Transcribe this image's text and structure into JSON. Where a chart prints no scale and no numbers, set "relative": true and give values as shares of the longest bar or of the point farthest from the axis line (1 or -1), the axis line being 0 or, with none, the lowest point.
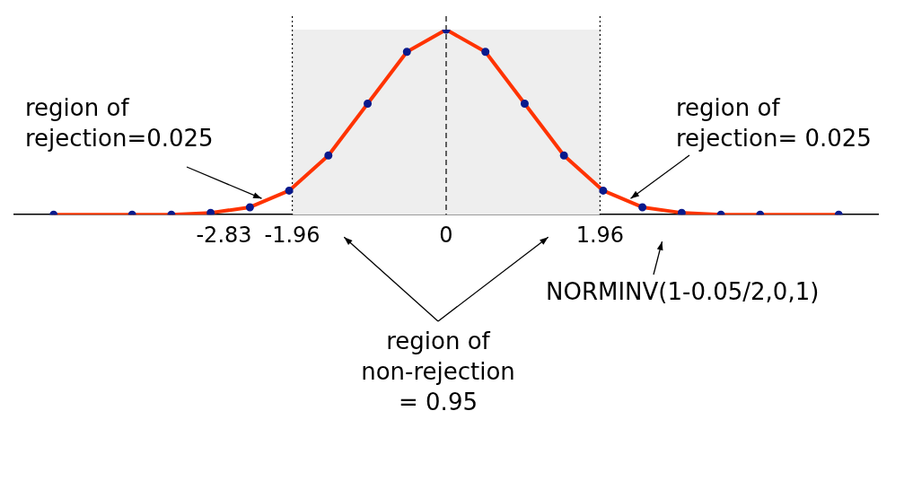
{
  "chart_data": {
    "type": "line",
    "relative": true,
    "x": [
      -5,
      -4,
      -3.5,
      -3,
      -2.5,
      -2,
      -1.5,
      -1,
      -0.5,
      0,
      0.5,
      1,
      1.5,
      2,
      2.5,
      3,
      3.5,
      4,
      5
    ],
    "series": [
      {
        "color": "#ff3300",
        "values": [
          0,
          0,
          0,
          0.01,
          0.04,
          0.13,
          0.32,
          0.6,
          0.88,
          1,
          0.88,
          0.6,
          0.32,
          0.13,
          0.04,
          0.01,
          0,
          0,
          0
        ]
      }
    ],
    "xlim": [
      -5.5,
      5.5
    ],
    "xticks": [
      -2.83,
      -1.96,
      0,
      1.96
    ],
    "marker": "circle",
    "line_style": "solid",
    "grid": false,
    "legend": false,
    "ref_lines": [
      {
        "axis": "x",
        "value": -1.96,
        "line_style": "dotted",
        "color": "#000000"
      },
      {
        "axis": "x",
        "value": 0,
        "line_style": "dashed",
        "color": "#000000"
      },
      {
        "axis": "x",
        "value": 1.96,
        "line_style": "dotted",
        "color": "#000000"
      }
    ],
    "bands": [
      {
        "axis": "x",
        "from": -1.96,
        "to": 1.96,
        "color": "#eeeeee"
      }
    ],
    "annotations": [
      "region of\nrejection=0.025",
      "region of\nrejection= 0.025",
      "region of\nnon-rejection\n= 0.95",
      "NORMINV(1-0.05/2,0,1)"
    ]
  }
}
